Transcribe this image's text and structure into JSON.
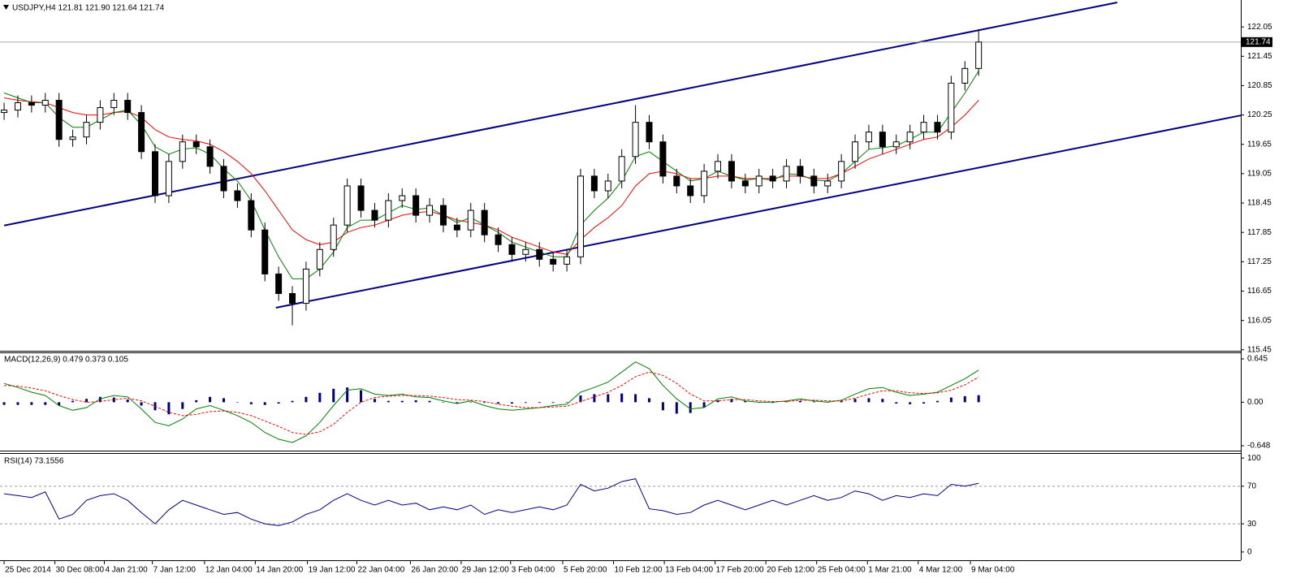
{
  "chart_data": [
    {
      "type": "candlestick",
      "title": "USDJPY,H4  121.81 121.90 121.64 121.74",
      "xlim": [
        -0.3,
        90.1
      ],
      "ylim": [
        115.43,
        122.6
      ],
      "yticks": [
        122.05,
        121.45,
        120.85,
        120.25,
        119.65,
        119.05,
        118.45,
        117.85,
        117.25,
        116.65,
        116.05,
        115.45
      ],
      "xticks": [
        {
          "value": 0,
          "label": "25 Dec 2014"
        },
        {
          "value": 3.7,
          "label": "30 Dec 08:00"
        },
        {
          "value": 7.3,
          "label": "4 Jan 21:00"
        },
        {
          "value": 10.8,
          "label": "7 Jan 12:00"
        },
        {
          "value": 14.6,
          "label": "12 Jan 04:00"
        },
        {
          "value": 18.3,
          "label": "14 Jan 20:00"
        },
        {
          "value": 22.1,
          "label": "19 Jan 12:00"
        },
        {
          "value": 25.7,
          "label": "22 Jan 04:00"
        },
        {
          "value": 29.6,
          "label": "26 Jan 20:00"
        },
        {
          "value": 33.3,
          "label": "29 Jan 12:00"
        },
        {
          "value": 36.9,
          "label": "3 Feb 04:00"
        },
        {
          "value": 40.7,
          "label": "5 Feb 20:00"
        },
        {
          "value": 44.4,
          "label": "10 Feb 12:00"
        },
        {
          "value": 48.1,
          "label": "13 Feb 04:00"
        },
        {
          "value": 51.8,
          "label": "17 Feb 20:00"
        },
        {
          "value": 55.5,
          "label": "20 Feb 12:00"
        },
        {
          "value": 59.2,
          "label": "25 Feb 04:00"
        },
        {
          "value": 62.9,
          "label": "1 Mar 21:00"
        },
        {
          "value": 66.6,
          "label": "4 Mar 12:00"
        },
        {
          "value": 70.4,
          "label": "9 Mar 04:00"
        }
      ],
      "open": [
        120.3,
        120.35,
        120.5,
        120.45,
        120.55,
        119.75,
        119.8,
        120.1,
        120.4,
        120.55,
        120.3,
        119.5,
        118.6,
        119.3,
        119.7,
        119.6,
        119.2,
        118.7,
        118.5,
        117.9,
        117.0,
        116.6,
        116.4,
        117.1,
        117.5,
        118.0,
        118.8,
        118.3,
        118.1,
        118.5,
        118.6,
        118.2,
        118.4,
        118.0,
        117.9,
        118.3,
        117.8,
        117.6,
        117.4,
        117.5,
        117.3,
        117.2,
        117.35,
        119.0,
        118.7,
        118.9,
        119.4,
        120.1,
        119.7,
        119.0,
        118.8,
        118.6,
        119.1,
        119.3,
        118.9,
        118.8,
        119.0,
        118.9,
        119.2,
        119.0,
        118.8,
        118.9,
        119.3,
        119.7,
        119.9,
        119.6,
        119.7,
        119.9,
        120.1,
        119.9,
        120.9,
        121.2
      ],
      "high": [
        120.5,
        120.65,
        120.65,
        120.7,
        120.7,
        119.95,
        120.25,
        120.55,
        120.7,
        120.7,
        120.45,
        119.65,
        119.45,
        119.85,
        119.85,
        119.75,
        119.35,
        118.85,
        118.65,
        118.05,
        117.15,
        116.75,
        117.25,
        117.65,
        118.15,
        118.95,
        118.95,
        118.45,
        118.65,
        118.75,
        118.75,
        118.55,
        118.55,
        118.15,
        118.45,
        118.45,
        117.95,
        117.75,
        117.65,
        117.65,
        117.45,
        117.5,
        119.15,
        119.15,
        119.05,
        119.55,
        120.45,
        120.25,
        119.85,
        119.15,
        118.95,
        119.25,
        119.45,
        119.45,
        119.05,
        119.15,
        119.15,
        119.35,
        119.35,
        119.15,
        119.05,
        119.45,
        119.85,
        120.05,
        120.05,
        119.85,
        120.05,
        120.25,
        120.25,
        121.05,
        121.35,
        122.0
      ],
      "low": [
        120.15,
        120.2,
        120.3,
        120.3,
        119.6,
        119.6,
        119.65,
        119.95,
        120.25,
        120.15,
        119.35,
        118.45,
        118.45,
        119.15,
        119.45,
        119.05,
        118.55,
        118.35,
        117.75,
        116.85,
        116.45,
        115.95,
        116.25,
        116.95,
        117.35,
        117.85,
        118.15,
        117.95,
        117.95,
        118.35,
        118.05,
        118.05,
        117.85,
        117.75,
        117.75,
        117.65,
        117.45,
        117.25,
        117.25,
        117.15,
        117.05,
        117.05,
        117.2,
        118.55,
        118.55,
        118.75,
        119.25,
        119.55,
        118.85,
        118.65,
        118.45,
        118.45,
        118.95,
        118.75,
        118.65,
        118.65,
        118.75,
        118.75,
        118.85,
        118.65,
        118.65,
        118.75,
        119.15,
        119.55,
        119.45,
        119.45,
        119.55,
        119.75,
        119.75,
        119.75,
        120.75,
        121.05
      ],
      "close": [
        120.35,
        120.5,
        120.45,
        120.55,
        119.75,
        119.8,
        120.1,
        120.4,
        120.55,
        120.3,
        119.5,
        118.6,
        119.3,
        119.7,
        119.6,
        119.2,
        118.7,
        118.5,
        117.9,
        117.0,
        116.6,
        116.4,
        117.1,
        117.5,
        118.0,
        118.8,
        118.3,
        118.1,
        118.5,
        118.6,
        118.2,
        118.4,
        118.0,
        117.9,
        118.3,
        117.8,
        117.6,
        117.4,
        117.5,
        117.3,
        117.2,
        117.35,
        119.0,
        118.7,
        118.9,
        119.4,
        120.1,
        119.7,
        119.0,
        118.8,
        118.6,
        119.1,
        119.3,
        118.9,
        118.8,
        119.0,
        118.9,
        119.2,
        119.0,
        118.8,
        118.9,
        119.3,
        119.7,
        119.9,
        119.6,
        119.7,
        119.9,
        120.1,
        119.9,
        120.9,
        121.2,
        121.74
      ],
      "series": [
        {
          "color": "#ff0000",
          "values": [
            120.6,
            120.55,
            120.52,
            120.5,
            120.4,
            120.3,
            120.25,
            120.25,
            120.3,
            120.32,
            120.2,
            119.95,
            119.8,
            119.75,
            119.72,
            119.65,
            119.5,
            119.3,
            119.05,
            118.7,
            118.3,
            117.9,
            117.7,
            117.6,
            117.65,
            117.85,
            117.95,
            118.0,
            118.1,
            118.2,
            118.25,
            118.28,
            118.2,
            118.1,
            118.05,
            118.0,
            117.9,
            117.75,
            117.65,
            117.55,
            117.45,
            117.4,
            117.7,
            117.95,
            118.15,
            118.4,
            118.8,
            119.05,
            119.1,
            119.05,
            118.95,
            118.95,
            119.0,
            119.0,
            118.95,
            118.95,
            118.95,
            119.0,
            119.0,
            118.95,
            118.95,
            119.05,
            119.2,
            119.35,
            119.45,
            119.55,
            119.65,
            119.75,
            119.8,
            120.0,
            120.25,
            120.55
          ]
        },
        {
          "color": "#008000",
          "values": [
            120.7,
            120.6,
            120.5,
            120.5,
            120.2,
            120.0,
            120.0,
            120.15,
            120.3,
            120.35,
            120.05,
            119.6,
            119.45,
            119.55,
            119.58,
            119.45,
            119.15,
            118.9,
            118.5,
            117.9,
            117.35,
            116.9,
            116.9,
            117.1,
            117.45,
            117.95,
            118.1,
            118.1,
            118.25,
            118.4,
            118.32,
            118.35,
            118.2,
            118.05,
            118.15,
            118.0,
            117.85,
            117.65,
            117.55,
            117.45,
            117.35,
            117.35,
            118.0,
            118.3,
            118.55,
            118.9,
            119.4,
            119.5,
            119.3,
            119.1,
            118.9,
            118.95,
            119.1,
            119.0,
            118.92,
            118.95,
            118.92,
            119.05,
            119.03,
            118.92,
            118.9,
            119.05,
            119.3,
            119.55,
            119.58,
            119.62,
            119.75,
            119.9,
            119.9,
            120.3,
            120.7,
            121.15
          ]
        }
      ],
      "trendlines": [
        {
          "color": "#000080",
          "x": [
            0,
            81.1
          ],
          "y": [
            117.99,
            122.55
          ]
        },
        {
          "color": "#000080",
          "x": [
            19.8,
            90.1
          ],
          "y": [
            116.31,
            120.24
          ]
        }
      ]
    },
    {
      "type": "macd",
      "title": "MACD(12,26,9) 0.479 0.373 0.105",
      "ylim": [
        -0.721,
        0.742
      ],
      "yticks": [
        0.645,
        {
          "value": 0,
          "label": "0.00"
        },
        -0.648
      ],
      "series": [
        {
          "style": "histogram",
          "color": "#000080",
          "values": [
            -0.04,
            -0.04,
            -0.04,
            -0.04,
            -0.05,
            0.02,
            0.05,
            0.08,
            0.07,
            0.04,
            -0.05,
            -0.12,
            -0.18,
            -0.1,
            0.03,
            0.08,
            0.06,
            0.0,
            -0.03,
            -0.04,
            -0.02,
            0.02,
            0.08,
            0.14,
            0.2,
            0.22,
            0.18,
            0.05,
            0.02,
            0.02,
            0.03,
            0.02,
            0.0,
            -0.02,
            0.0,
            -0.01,
            -0.02,
            -0.02,
            -0.01,
            -0.01,
            -0.01,
            0.0,
            0.1,
            0.12,
            0.12,
            0.13,
            0.12,
            0.06,
            -0.12,
            -0.17,
            -0.16,
            -0.08,
            0.03,
            0.05,
            0.02,
            0.0,
            -0.01,
            0.01,
            0.02,
            0.01,
            0.01,
            0.02,
            0.05,
            0.06,
            0.05,
            -0.02,
            -0.03,
            -0.02,
            0.02,
            0.07,
            0.09,
            0.105
          ]
        },
        {
          "style": "line",
          "color": "#008000",
          "values": [
            0.28,
            0.22,
            0.15,
            0.1,
            -0.05,
            -0.12,
            -0.08,
            0.05,
            0.1,
            0.08,
            -0.1,
            -0.3,
            -0.35,
            -0.25,
            -0.1,
            -0.05,
            -0.12,
            -0.2,
            -0.3,
            -0.45,
            -0.55,
            -0.6,
            -0.5,
            -0.3,
            -0.05,
            0.18,
            0.2,
            0.12,
            0.1,
            0.12,
            0.08,
            0.07,
            0.02,
            -0.02,
            0.02,
            -0.05,
            -0.1,
            -0.12,
            -0.1,
            -0.08,
            -0.05,
            -0.03,
            0.15,
            0.22,
            0.3,
            0.45,
            0.6,
            0.5,
            0.25,
            0.05,
            -0.1,
            -0.08,
            0.05,
            0.08,
            0.02,
            0.0,
            0.0,
            0.02,
            0.05,
            0.02,
            0.0,
            0.03,
            0.12,
            0.2,
            0.22,
            0.15,
            0.1,
            0.12,
            0.15,
            0.25,
            0.35,
            0.479
          ]
        },
        {
          "style": "dashed",
          "color": "#ff0000",
          "values": [
            0.25,
            0.24,
            0.21,
            0.17,
            0.1,
            0.04,
            0.0,
            0.01,
            0.04,
            0.06,
            0.02,
            -0.06,
            -0.15,
            -0.2,
            -0.18,
            -0.14,
            -0.13,
            -0.15,
            -0.2,
            -0.28,
            -0.36,
            -0.45,
            -0.48,
            -0.44,
            -0.33,
            -0.15,
            0.0,
            0.07,
            0.09,
            0.1,
            0.1,
            0.09,
            0.07,
            0.04,
            0.03,
            0.01,
            -0.03,
            -0.06,
            -0.08,
            -0.08,
            -0.07,
            -0.06,
            0.01,
            0.08,
            0.15,
            0.25,
            0.38,
            0.45,
            0.4,
            0.28,
            0.12,
            0.02,
            0.02,
            0.04,
            0.04,
            0.02,
            0.01,
            0.01,
            0.03,
            0.03,
            0.02,
            0.02,
            0.06,
            0.12,
            0.17,
            0.17,
            0.14,
            0.13,
            0.14,
            0.18,
            0.26,
            0.373
          ]
        }
      ]
    },
    {
      "type": "line",
      "title": "RSI(14) 73.1556",
      "ylim": [
        -8.8,
        105.3
      ],
      "yticks": [
        100,
        70,
        30,
        0
      ],
      "levels": [
        70,
        30
      ],
      "series": [
        {
          "style": "line",
          "color": "#000080",
          "values": [
            62,
            60,
            58,
            64,
            35,
            40,
            55,
            60,
            62,
            55,
            42,
            30,
            45,
            55,
            50,
            45,
            40,
            42,
            35,
            30,
            28,
            32,
            40,
            45,
            55,
            62,
            55,
            50,
            55,
            50,
            52,
            45,
            48,
            45,
            50,
            40,
            45,
            42,
            45,
            48,
            45,
            50,
            72,
            65,
            68,
            75,
            78,
            46,
            44,
            40,
            42,
            50,
            55,
            50,
            45,
            50,
            55,
            50,
            55,
            60,
            55,
            58,
            65,
            62,
            55,
            60,
            58,
            62,
            60,
            72,
            70,
            73.1556
          ]
        }
      ]
    }
  ]
}
